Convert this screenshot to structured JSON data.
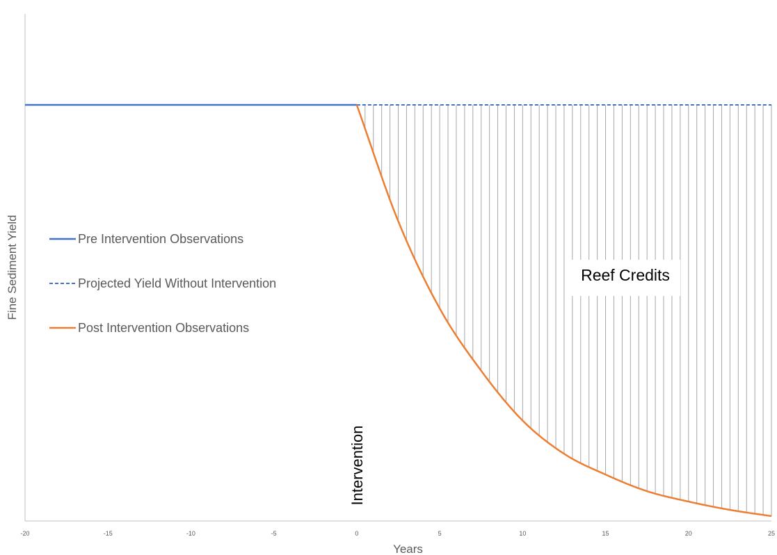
{
  "chart_data": {
    "type": "line",
    "title": "",
    "xlabel": "Years",
    "ylabel": "Fine Sediment Yield",
    "xlim": [
      -20,
      25
    ],
    "x_ticks": [
      -20,
      -15,
      -10,
      -5,
      0,
      5,
      10,
      15,
      20,
      25
    ],
    "y_ticks_shown": false,
    "grid": false,
    "legend_position": "left-middle",
    "baseline_level": 1.0,
    "series": [
      {
        "name": "Pre Intervention Observations",
        "style": "solid",
        "color": "#4472C4",
        "x": [
          -20,
          0
        ],
        "y": [
          1.0,
          1.0
        ]
      },
      {
        "name": "Projected Yield Without Intervention",
        "style": "dashed",
        "color": "#4472C4",
        "x": [
          0,
          25
        ],
        "y": [
          1.0,
          1.0
        ]
      },
      {
        "name": "Post Intervention Observations",
        "style": "solid",
        "color": "#ED7D31",
        "x": [
          0,
          2.5,
          5,
          7.5,
          10,
          12.5,
          15,
          17.5,
          20,
          22.5,
          25
        ],
        "y": [
          1.0,
          0.72,
          0.51,
          0.36,
          0.24,
          0.16,
          0.11,
          0.07,
          0.045,
          0.025,
          0.01
        ]
      }
    ],
    "annotations": {
      "region_label": "Reef Credits",
      "region_hatch_color": "#a6a6a6",
      "event_label": "Intervention",
      "event_x": 0
    }
  }
}
